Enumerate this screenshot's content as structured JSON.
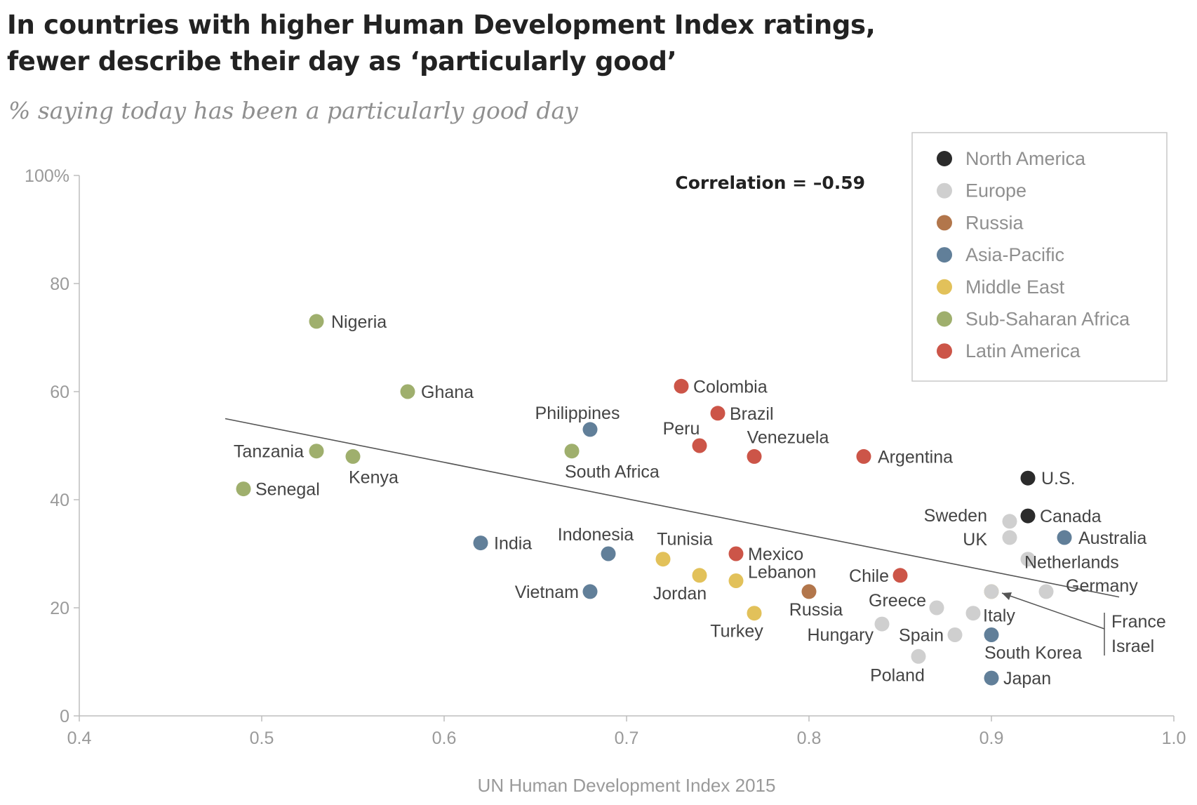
{
  "header": {
    "title_line1": "In countries with higher Human Development Index ratings,",
    "title_line2": "fewer describe their day as ‘particularly good’",
    "subtitle": "% saying today has been a particularly good day"
  },
  "chart_data": {
    "type": "scatter",
    "xlabel": "UN Human Development Index 2015",
    "ylabel": "",
    "xlim": [
      0.4,
      1.0
    ],
    "ylim": [
      0,
      100
    ],
    "x_ticks": [
      "0.4",
      "0.5",
      "0.6",
      "0.7",
      "0.8",
      "0.9",
      "1.0"
    ],
    "y_ticks": [
      "0",
      "20",
      "40",
      "60",
      "80",
      "100%"
    ],
    "grid": false,
    "legend_position": "top-right",
    "annotation": "Correlation = –0.59",
    "trendline": {
      "x": [
        0.48,
        0.97
      ],
      "y": [
        55,
        22
      ]
    },
    "regions": [
      {
        "name": "North America",
        "color": "#2b2b2b"
      },
      {
        "name": "Europe",
        "color": "#cfcfcf"
      },
      {
        "name": "Russia",
        "color": "#b2764b"
      },
      {
        "name": "Asia-Pacific",
        "color": "#617f99"
      },
      {
        "name": "Middle East",
        "color": "#e2c15a"
      },
      {
        "name": "Sub-Saharan Africa",
        "color": "#9faf6d"
      },
      {
        "name": "Latin America",
        "color": "#cc5548"
      }
    ],
    "points": [
      {
        "label": "Nigeria",
        "region": "Sub-Saharan Africa",
        "x": 0.53,
        "y": 73
      },
      {
        "label": "Ghana",
        "region": "Sub-Saharan Africa",
        "x": 0.58,
        "y": 60
      },
      {
        "label": "Tanzania",
        "region": "Sub-Saharan Africa",
        "x": 0.53,
        "y": 49
      },
      {
        "label": "Kenya",
        "region": "Sub-Saharan Africa",
        "x": 0.55,
        "y": 48
      },
      {
        "label": "Senegal",
        "region": "Sub-Saharan Africa",
        "x": 0.49,
        "y": 42
      },
      {
        "label": "South Africa",
        "region": "Sub-Saharan Africa",
        "x": 0.67,
        "y": 49
      },
      {
        "label": "Philippines",
        "region": "Asia-Pacific",
        "x": 0.68,
        "y": 53
      },
      {
        "label": "India",
        "region": "Asia-Pacific",
        "x": 0.62,
        "y": 32
      },
      {
        "label": "Indonesia",
        "region": "Asia-Pacific",
        "x": 0.69,
        "y": 30
      },
      {
        "label": "Vietnam",
        "region": "Asia-Pacific",
        "x": 0.68,
        "y": 23
      },
      {
        "label": "Australia",
        "region": "Asia-Pacific",
        "x": 0.94,
        "y": 33
      },
      {
        "label": "South Korea",
        "region": "Asia-Pacific",
        "x": 0.9,
        "y": 15
      },
      {
        "label": "Japan",
        "region": "Asia-Pacific",
        "x": 0.9,
        "y": 7
      },
      {
        "label": "Colombia",
        "region": "Latin America",
        "x": 0.73,
        "y": 61
      },
      {
        "label": "Brazil",
        "region": "Latin America",
        "x": 0.75,
        "y": 56
      },
      {
        "label": "Peru",
        "region": "Latin America",
        "x": 0.74,
        "y": 50
      },
      {
        "label": "Venezuela",
        "region": "Latin America",
        "x": 0.77,
        "y": 48
      },
      {
        "label": "Argentina",
        "region": "Latin America",
        "x": 0.83,
        "y": 48
      },
      {
        "label": "Mexico",
        "region": "Latin America",
        "x": 0.76,
        "y": 30
      },
      {
        "label": "Chile",
        "region": "Latin America",
        "x": 0.85,
        "y": 26
      },
      {
        "label": "Tunisia",
        "region": "Middle East",
        "x": 0.72,
        "y": 29
      },
      {
        "label": "Jordan",
        "region": "Middle East",
        "x": 0.74,
        "y": 26
      },
      {
        "label": "Lebanon",
        "region": "Middle East",
        "x": 0.76,
        "y": 25
      },
      {
        "label": "Turkey",
        "region": "Middle East",
        "x": 0.77,
        "y": 19
      },
      {
        "label": "Israel",
        "region": "Middle East",
        "x": 0.9,
        "y": 23
      },
      {
        "label": "Russia",
        "region": "Russia",
        "x": 0.8,
        "y": 23
      },
      {
        "label": "U.S.",
        "region": "North America",
        "x": 0.92,
        "y": 44
      },
      {
        "label": "Canada",
        "region": "North America",
        "x": 0.92,
        "y": 37
      },
      {
        "label": "Sweden",
        "region": "Europe",
        "x": 0.91,
        "y": 36
      },
      {
        "label": "UK",
        "region": "Europe",
        "x": 0.91,
        "y": 33
      },
      {
        "label": "Netherlands",
        "region": "Europe",
        "x": 0.92,
        "y": 29
      },
      {
        "label": "Germany",
        "region": "Europe",
        "x": 0.93,
        "y": 23
      },
      {
        "label": "France",
        "region": "Europe",
        "x": 0.9,
        "y": 23
      },
      {
        "label": "Greece",
        "region": "Europe",
        "x": 0.87,
        "y": 20
      },
      {
        "label": "Italy",
        "region": "Europe",
        "x": 0.89,
        "y": 19
      },
      {
        "label": "Hungary",
        "region": "Europe",
        "x": 0.84,
        "y": 17
      },
      {
        "label": "Spain",
        "region": "Europe",
        "x": 0.88,
        "y": 15
      },
      {
        "label": "Poland",
        "region": "Europe",
        "x": 0.86,
        "y": 11
      }
    ]
  }
}
